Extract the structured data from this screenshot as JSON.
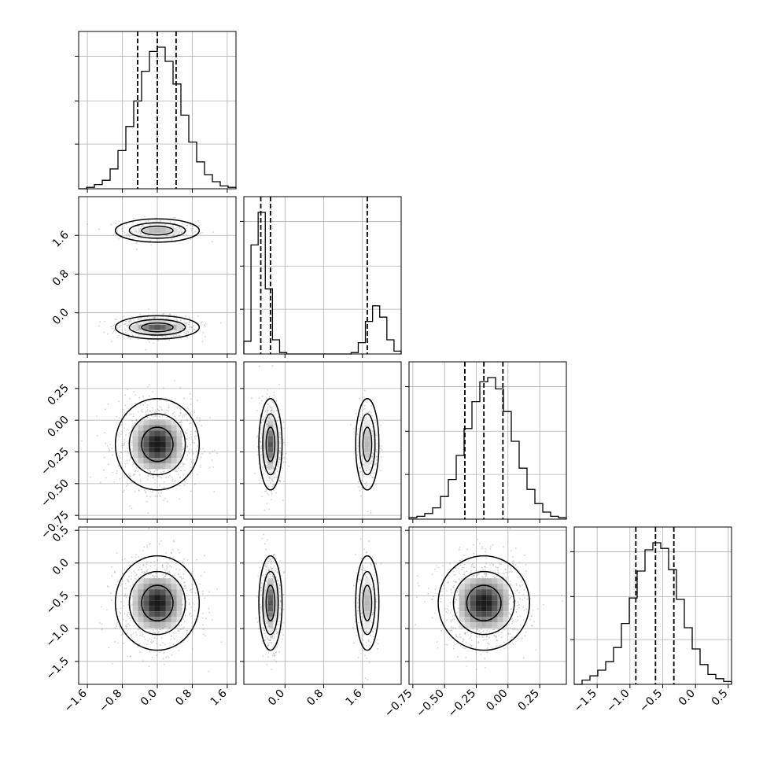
{
  "chart_data": {
    "type": "corner",
    "title": "",
    "parameters": 4,
    "grid": true,
    "colors": {
      "line": "#000000",
      "grid": "#b0b0b0",
      "points": "#7f7f7f"
    },
    "ranges": [
      [
        -1.8,
        1.8
      ],
      [
        -0.85,
        2.4
      ],
      [
        -0.78,
        0.46
      ],
      [
        -1.85,
        0.55
      ]
    ],
    "ticks": [
      {
        "values": [
          -1.6,
          -0.8,
          0.0,
          0.8,
          1.6
        ],
        "labels": [
          "−1.6",
          "−0.8",
          "0.0",
          "0.8",
          "1.6"
        ]
      },
      {
        "values": [
          0.0,
          0.8,
          1.6
        ],
        "labels": [
          "0.0",
          "0.8",
          "1.6"
        ]
      },
      {
        "values": [
          -0.75,
          -0.5,
          -0.25,
          0.0,
          0.25
        ],
        "labels": [
          "−0.75",
          "−0.50",
          "−0.25",
          "0.00",
          "0.25"
        ]
      },
      {
        "values": [
          -1.5,
          -1.0,
          -0.5,
          0.0,
          0.5
        ],
        "labels": [
          "−1.5",
          "−1.0",
          "−0.5",
          "0.0",
          "0.5"
        ]
      }
    ],
    "quantiles": [
      [
        -0.45,
        0.0,
        0.43
      ],
      [
        -0.5,
        -0.3,
        1.7
      ],
      [
        -0.34,
        -0.19,
        -0.04
      ],
      [
        -0.91,
        -0.61,
        -0.33
      ]
    ],
    "histograms": [
      [
        0.0,
        0.01,
        0.03,
        0.06,
        0.14,
        0.27,
        0.44,
        0.62,
        0.83,
        0.97,
        1.0,
        0.9,
        0.74,
        0.52,
        0.33,
        0.19,
        0.1,
        0.05,
        0.02,
        0.01
      ],
      [
        0.09,
        0.77,
        1.0,
        0.46,
        0.1,
        0.01,
        0.0,
        0.0,
        0.0,
        0.0,
        0.0,
        0.0,
        0.0,
        0.0,
        0.0,
        0.01,
        0.08,
        0.23,
        0.34,
        0.26,
        0.1,
        0.02
      ],
      [
        0.01,
        0.02,
        0.04,
        0.08,
        0.16,
        0.28,
        0.45,
        0.64,
        0.83,
        0.97,
        1.0,
        0.92,
        0.76,
        0.55,
        0.36,
        0.21,
        0.11,
        0.05,
        0.02,
        0.01
      ],
      [
        0.0,
        0.03,
        0.06,
        0.1,
        0.16,
        0.26,
        0.43,
        0.61,
        0.8,
        0.95,
        1.0,
        0.96,
        0.81,
        0.6,
        0.4,
        0.25,
        0.14,
        0.07,
        0.04,
        0.02
      ]
    ],
    "blobs": [
      {
        "x": 1,
        "y": 0,
        "mx": 0.0,
        "my": 1.7,
        "sx": 0.4,
        "sy": 0.1,
        "w": 0.3
      },
      {
        "x": 1,
        "y": 0,
        "mx": 0.0,
        "my": -0.3,
        "sx": 0.4,
        "sy": 0.1,
        "w": 0.7
      },
      {
        "x": 2,
        "y": 0,
        "mx": 0.0,
        "my": -0.19,
        "sx": 0.4,
        "sy": 0.15,
        "w": 1.0
      },
      {
        "x": 2,
        "y": 1,
        "mx": -0.3,
        "my": -0.19,
        "sx": 0.1,
        "sy": 0.15,
        "w": 0.7
      },
      {
        "x": 2,
        "y": 1,
        "mx": 1.7,
        "my": -0.19,
        "sx": 0.1,
        "sy": 0.15,
        "w": 0.3
      },
      {
        "x": 3,
        "y": 0,
        "mx": 0.0,
        "my": -0.61,
        "sx": 0.4,
        "sy": 0.3,
        "w": 1.0
      },
      {
        "x": 3,
        "y": 1,
        "mx": -0.3,
        "my": -0.61,
        "sx": 0.1,
        "sy": 0.3,
        "w": 0.7
      },
      {
        "x": 3,
        "y": 1,
        "mx": 1.7,
        "my": -0.61,
        "sx": 0.1,
        "sy": 0.3,
        "w": 0.3
      },
      {
        "x": 3,
        "y": 2,
        "mx": -0.19,
        "my": -0.61,
        "sx": 0.15,
        "sy": 0.3,
        "w": 1.0
      }
    ]
  }
}
